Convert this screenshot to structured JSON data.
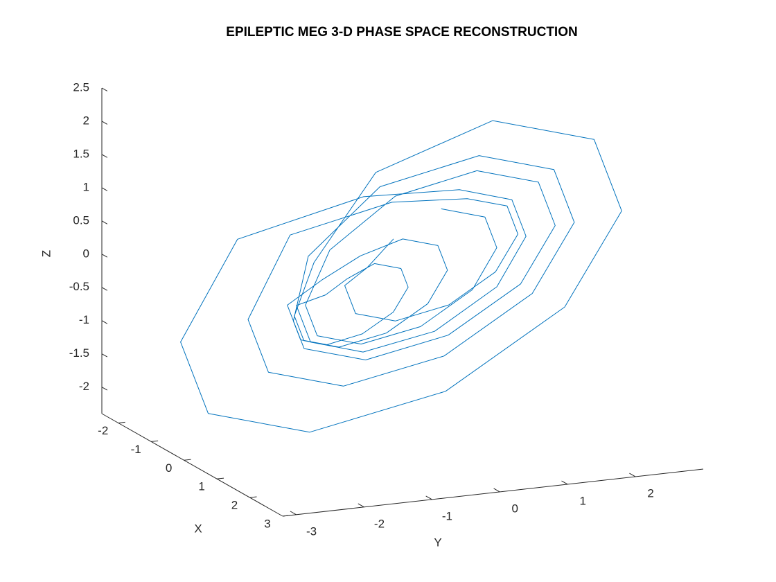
{
  "chart_data": {
    "type": "line3d",
    "title": "EPILEPTIC MEG 3-D PHASE SPACE RECONSTRUCTION",
    "xlabel": "X",
    "ylabel": "Y",
    "zlabel": "Z",
    "color": "#0072bd",
    "xlim": [
      -2.5,
      3
    ],
    "ylim": [
      -3.2,
      3
    ],
    "zlim": [
      -2.4,
      2.5
    ],
    "xticks": [
      -2,
      -1,
      0,
      1,
      2,
      3
    ],
    "yticks": [
      -3,
      -2,
      -1,
      0,
      1,
      2
    ],
    "zticks": [
      -2,
      -1.5,
      -1,
      -0.5,
      0,
      0.5,
      1,
      1.5,
      2,
      2.5
    ],
    "x": [
      0,
      0.59,
      0.95,
      0.95,
      0.59,
      0,
      -0.59,
      -0.95,
      -0.95,
      -0.59,
      0.2,
      1.02,
      1.53,
      1.53,
      1.02,
      0.2,
      -0.62,
      -1.13,
      -1.13,
      -0.62,
      -0.3,
      0.17,
      0.46,
      0.46,
      0.17,
      -0.3,
      -0.77,
      -1.06,
      -1.06,
      -0.77,
      0,
      1.35,
      2.19,
      2.19,
      1.35,
      0,
      -1.35,
      -2.19,
      -2.19,
      -1.35,
      0.1,
      0.81,
      1.24,
      1.24,
      0.81,
      0.1,
      -0.61,
      -1.04,
      -1.04,
      -0.61,
      -0.5,
      -0.15,
      0.07,
      0.07,
      -0.15,
      -0.5,
      -0.85,
      -1.07,
      -1.07,
      -0.85,
      0.1,
      1.1,
      1.72,
      1.72,
      1.1,
      0.1,
      -0.9,
      -1.52,
      -1.52,
      -0.9,
      0.3,
      0.83,
      1.16,
      1.16,
      0.83,
      0.3,
      -0.23,
      -0.56,
      -0.56,
      -0.23
    ],
    "y": [
      0.59,
      0.95,
      0.95,
      0.59,
      0,
      -0.59,
      -0.95,
      -0.95,
      -0.59,
      0.2,
      1.02,
      1.53,
      1.53,
      1.02,
      0.2,
      -0.62,
      -1.13,
      -1.13,
      -0.62,
      -0.3,
      0.17,
      0.46,
      0.46,
      0.17,
      -0.3,
      -0.77,
      -1.06,
      -1.06,
      -0.77,
      0,
      1.35,
      2.19,
      2.19,
      1.35,
      0,
      -1.35,
      -2.19,
      -2.19,
      -1.35,
      0.1,
      0.81,
      1.24,
      1.24,
      0.81,
      0.1,
      -0.61,
      -1.04,
      -1.04,
      -0.61,
      -0.5,
      -0.15,
      0.07,
      0.07,
      -0.15,
      -0.5,
      -0.85,
      -1.07,
      -1.07,
      -0.85,
      0.1,
      1.1,
      1.72,
      1.72,
      1.1,
      0.1,
      -0.9,
      -1.52,
      -1.52,
      -0.9,
      0.3,
      0.83,
      1.16,
      1.16,
      0.83,
      0.3,
      -0.23,
      -0.56,
      -0.56,
      -0.23,
      0
    ],
    "z": [
      0.95,
      0.95,
      0.59,
      0,
      -0.59,
      -0.95,
      -0.95,
      -0.59,
      0.2,
      1.02,
      1.53,
      1.53,
      1.02,
      0.2,
      -0.62,
      -1.13,
      -1.13,
      -0.62,
      -0.3,
      0.17,
      0.46,
      0.46,
      0.17,
      -0.3,
      -0.77,
      -1.06,
      -1.06,
      -0.77,
      0,
      1.35,
      2.19,
      2.19,
      1.35,
      0,
      -1.35,
      -2.19,
      -2.19,
      -1.35,
      0.1,
      0.81,
      1.24,
      1.24,
      0.81,
      0.1,
      -0.61,
      -1.04,
      -1.04,
      -0.61,
      -0.5,
      -0.15,
      0.07,
      0.07,
      -0.15,
      -0.5,
      -0.85,
      -1.07,
      -1.07,
      -0.85,
      0.1,
      1.1,
      1.72,
      1.72,
      1.1,
      0.1,
      -0.9,
      -1.52,
      -1.52,
      -0.9,
      0.3,
      0.83,
      1.16,
      1.16,
      0.83,
      0.3,
      -0.23,
      -0.56,
      -0.56,
      -0.23,
      0,
      0.5
    ]
  }
}
